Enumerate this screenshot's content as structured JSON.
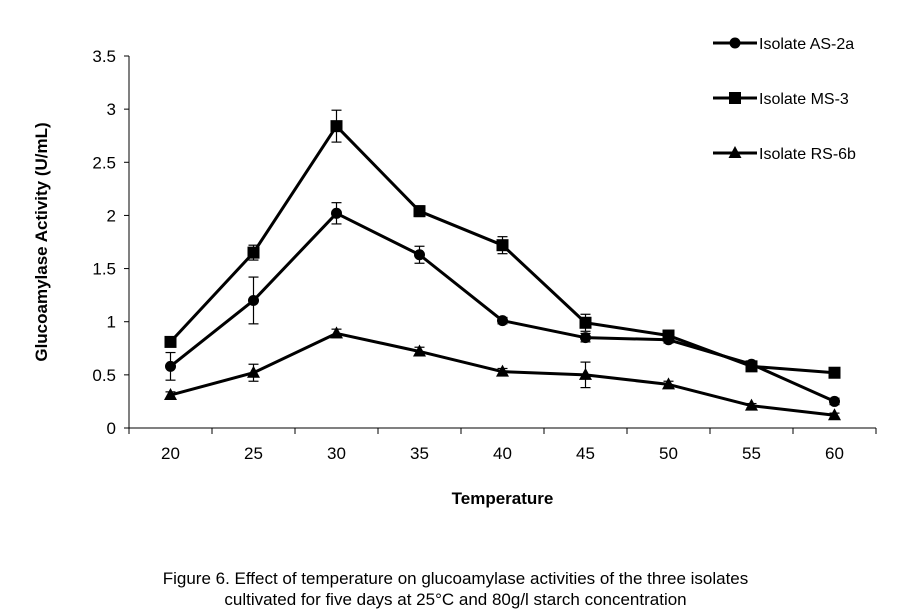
{
  "chart_data": {
    "type": "line",
    "title": "",
    "xlabel": "Temperature",
    "ylabel": "Glucoamylase Activity (U/mL)",
    "categories": [
      "20",
      "25",
      "30",
      "35",
      "40",
      "45",
      "50",
      "55",
      "60"
    ],
    "ylim": [
      0,
      3.5
    ],
    "yticks": [
      "0",
      "0.5",
      "1",
      "1.5",
      "2",
      "2.5",
      "3",
      "3.5"
    ],
    "grid": false,
    "legend_position": "top-right",
    "series": [
      {
        "name": "Isolate AS-2a",
        "marker": "circle",
        "values": [
          0.58,
          1.2,
          2.02,
          1.63,
          1.01,
          0.85,
          0.83,
          0.6,
          0.25
        ],
        "errors": [
          0.13,
          0.22,
          0.1,
          0.08,
          0.03,
          0.04,
          0.03,
          0.03,
          0.03
        ]
      },
      {
        "name": "Isolate MS-3",
        "marker": "square",
        "values": [
          0.81,
          1.65,
          2.84,
          2.04,
          1.72,
          0.99,
          0.87,
          0.58,
          0.52
        ],
        "errors": [
          0.04,
          0.07,
          0.15,
          0.05,
          0.08,
          0.08,
          0.03,
          0.03,
          0.03
        ]
      },
      {
        "name": "Isolate RS-6b",
        "marker": "triangle",
        "values": [
          0.31,
          0.52,
          0.89,
          0.72,
          0.53,
          0.5,
          0.41,
          0.21,
          0.12
        ],
        "errors": [
          0.03,
          0.08,
          0.04,
          0.04,
          0.03,
          0.12,
          0.03,
          0.02,
          0.02
        ]
      }
    ],
    "caption_lines": [
      "Figure 6. Effect of temperature on glucoamylase activities of the three isolates",
      "cultivated for five days at 25°C and 80g/l starch concentration"
    ]
  }
}
